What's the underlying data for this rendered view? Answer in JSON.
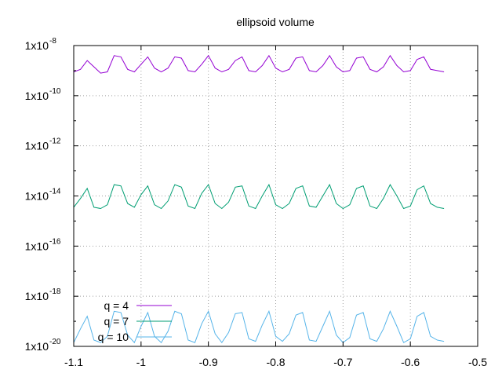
{
  "chart_data": {
    "type": "line",
    "title": "ellipsoid volume",
    "xlabel": "",
    "ylabel": "",
    "xlim": [
      -1.1,
      -0.5
    ],
    "ylim_log10": [
      -20,
      -8
    ],
    "y_scale": "log",
    "grid": true,
    "legend_position": "bottom-left",
    "x_ticks": [
      {
        "value": -1.1,
        "label": "-1.1"
      },
      {
        "value": -1.0,
        "label": "-1"
      },
      {
        "value": -0.9,
        "label": "-0.9"
      },
      {
        "value": -0.8,
        "label": "-0.8"
      },
      {
        "value": -0.7,
        "label": "-0.7"
      },
      {
        "value": -0.6,
        "label": "-0.6"
      },
      {
        "value": -0.5,
        "label": "-0.5"
      }
    ],
    "y_ticks": [
      {
        "exp": -8,
        "base": "1x10",
        "sup": "-8"
      },
      {
        "exp": -10,
        "base": "1x10",
        "sup": "-10"
      },
      {
        "exp": -12,
        "base": "1x10",
        "sup": "-12"
      },
      {
        "exp": -14,
        "base": "1x10",
        "sup": "-14"
      },
      {
        "exp": -16,
        "base": "1x10",
        "sup": "-16"
      },
      {
        "exp": -18,
        "base": "1x10",
        "sup": "-18"
      },
      {
        "exp": -20,
        "base": "1x10",
        "sup": "-20"
      }
    ],
    "series": [
      {
        "name": "q = 4",
        "color": "#9400d3",
        "x": [
          -1.1,
          -1.09,
          -1.08,
          -1.07,
          -1.06,
          -1.05,
          -1.04,
          -1.03,
          -1.02,
          -1.01,
          -1.0,
          -0.99,
          -0.98,
          -0.97,
          -0.96,
          -0.95,
          -0.94,
          -0.93,
          -0.92,
          -0.91,
          -0.9,
          -0.89,
          -0.88,
          -0.87,
          -0.86,
          -0.85,
          -0.84,
          -0.83,
          -0.82,
          -0.81,
          -0.8,
          -0.79,
          -0.78,
          -0.77,
          -0.76,
          -0.75,
          -0.74,
          -0.73,
          -0.72,
          -0.71,
          -0.7,
          -0.69,
          -0.68,
          -0.67,
          -0.66,
          -0.65,
          -0.64,
          -0.63,
          -0.62,
          -0.61,
          -0.6,
          -0.59,
          -0.58,
          -0.57,
          -0.56,
          -0.55
        ],
        "log10_y": [
          -9.05,
          -8.95,
          -8.6,
          -8.85,
          -9.1,
          -9.05,
          -8.4,
          -8.45,
          -8.95,
          -9.05,
          -8.75,
          -8.45,
          -8.9,
          -9.05,
          -8.9,
          -8.45,
          -8.5,
          -9.0,
          -9.05,
          -8.75,
          -8.4,
          -8.9,
          -9.05,
          -8.95,
          -8.6,
          -8.45,
          -9.0,
          -9.05,
          -8.8,
          -8.4,
          -8.9,
          -9.05,
          -8.95,
          -8.5,
          -8.45,
          -9.0,
          -9.05,
          -8.8,
          -8.4,
          -8.85,
          -9.05,
          -9.0,
          -8.5,
          -8.45,
          -8.95,
          -9.05,
          -8.85,
          -8.4,
          -8.8,
          -9.05,
          -9.0,
          -8.55,
          -8.45,
          -8.95,
          -9.0,
          -9.05
        ]
      },
      {
        "name": "q = 7",
        "color": "#009e73",
        "x": [
          -1.1,
          -1.09,
          -1.08,
          -1.07,
          -1.06,
          -1.05,
          -1.04,
          -1.03,
          -1.02,
          -1.01,
          -1.0,
          -0.99,
          -0.98,
          -0.97,
          -0.96,
          -0.95,
          -0.94,
          -0.93,
          -0.92,
          -0.91,
          -0.9,
          -0.89,
          -0.88,
          -0.87,
          -0.86,
          -0.85,
          -0.84,
          -0.83,
          -0.82,
          -0.81,
          -0.8,
          -0.79,
          -0.78,
          -0.77,
          -0.76,
          -0.75,
          -0.74,
          -0.73,
          -0.72,
          -0.71,
          -0.7,
          -0.69,
          -0.68,
          -0.67,
          -0.66,
          -0.65,
          -0.64,
          -0.63,
          -0.62,
          -0.61,
          -0.6,
          -0.59,
          -0.58,
          -0.57,
          -0.56,
          -0.55
        ],
        "log10_y": [
          -14.45,
          -14.1,
          -13.7,
          -14.45,
          -14.5,
          -14.35,
          -13.55,
          -13.6,
          -14.3,
          -14.45,
          -13.95,
          -13.6,
          -14.35,
          -14.5,
          -14.2,
          -13.55,
          -13.65,
          -14.4,
          -14.5,
          -13.9,
          -13.55,
          -14.3,
          -14.5,
          -14.25,
          -13.65,
          -13.6,
          -14.4,
          -14.5,
          -14.0,
          -13.55,
          -14.35,
          -14.5,
          -14.3,
          -13.7,
          -13.6,
          -14.4,
          -14.45,
          -14.0,
          -13.55,
          -14.3,
          -14.5,
          -14.35,
          -13.7,
          -13.6,
          -14.4,
          -14.5,
          -14.1,
          -13.55,
          -14.0,
          -14.5,
          -14.4,
          -13.75,
          -13.6,
          -14.3,
          -14.45,
          -14.5
        ]
      },
      {
        "name": "q = 10",
        "color": "#56b4e9",
        "x": [
          -1.1,
          -1.09,
          -1.08,
          -1.07,
          -1.06,
          -1.05,
          -1.04,
          -1.03,
          -1.02,
          -1.01,
          -1.0,
          -0.99,
          -0.98,
          -0.97,
          -0.96,
          -0.95,
          -0.94,
          -0.93,
          -0.92,
          -0.91,
          -0.9,
          -0.89,
          -0.88,
          -0.87,
          -0.86,
          -0.85,
          -0.84,
          -0.83,
          -0.82,
          -0.81,
          -0.8,
          -0.79,
          -0.78,
          -0.77,
          -0.76,
          -0.75,
          -0.74,
          -0.73,
          -0.72,
          -0.71,
          -0.7,
          -0.69,
          -0.68,
          -0.67,
          -0.66,
          -0.65,
          -0.64,
          -0.63,
          -0.62,
          -0.61,
          -0.6,
          -0.59,
          -0.58,
          -0.57,
          -0.56,
          -0.55
        ],
        "log10_y": [
          -19.85,
          -19.3,
          -18.8,
          -19.75,
          -19.85,
          -19.6,
          -18.6,
          -18.65,
          -19.55,
          -19.85,
          -19.2,
          -18.65,
          -19.6,
          -19.85,
          -19.4,
          -18.6,
          -18.7,
          -19.75,
          -19.85,
          -19.1,
          -18.6,
          -19.5,
          -19.85,
          -19.45,
          -18.7,
          -18.65,
          -19.7,
          -19.8,
          -19.15,
          -18.6,
          -19.6,
          -19.8,
          -19.5,
          -18.75,
          -18.65,
          -19.75,
          -19.8,
          -19.2,
          -18.6,
          -19.55,
          -19.85,
          -19.65,
          -18.75,
          -18.65,
          -19.7,
          -19.8,
          -19.3,
          -18.6,
          -19.2,
          -19.85,
          -19.7,
          -18.8,
          -18.65,
          -19.6,
          -19.75,
          -19.8
        ]
      }
    ]
  }
}
